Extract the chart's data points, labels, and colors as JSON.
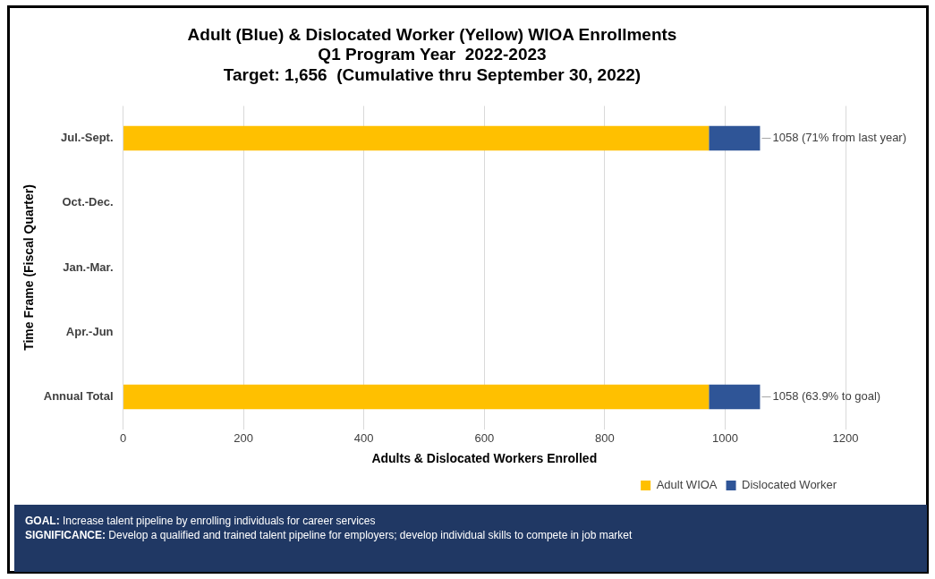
{
  "chart_data": {
    "type": "bar",
    "orientation": "horizontal",
    "stacked": true,
    "title": [
      "Adult (Blue) & Dislocated Worker (Yellow) WIOA Enrollments",
      "Q1 Program Year  2022-2023",
      "Target: 1,656  (Cumulative thru September 30, 2022)"
    ],
    "xlabel": "Adults & Dislocated Workers Enrolled",
    "ylabel": "Time Frame (Fiscal Quarter)",
    "categories": [
      "Jul.-Sept.",
      "Oct.-Dec.",
      "Jan.-Mar.",
      "Apr.-Jun",
      "Annual Total"
    ],
    "series": [
      {
        "name": "Adult WIOA",
        "color": "#ffc000",
        "values": [
          973,
          null,
          null,
          null,
          973
        ]
      },
      {
        "name": "Dislocated Worker",
        "color": "#2f5597",
        "values": [
          85,
          null,
          null,
          null,
          85
        ]
      }
    ],
    "xlim": [
      0,
      1200
    ],
    "xticks": [
      0,
      200,
      400,
      600,
      800,
      1000,
      1200
    ],
    "grid": "x",
    "legend": "bottom right",
    "annotations": [
      {
        "text": "1058 (71% from last year)",
        "x": 1058,
        "y": "Jul.-Sept."
      },
      {
        "text": "1058 (63.9% to goal)",
        "x": 1058,
        "y": "Annual Total"
      },
      "GOAL: Increase talent pipeline by enrolling individuals for career services",
      "SIGNIFICANCE: Develop a qualified and trained talent pipeline for employers; develop individual skills to compete in job market"
    ]
  }
}
